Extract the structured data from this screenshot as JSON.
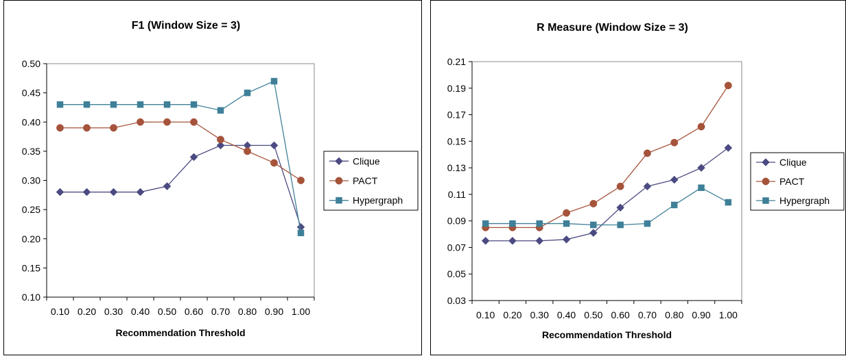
{
  "chart_data": [
    {
      "type": "line",
      "title": "F1 (Window Size = 3)",
      "xlabel": "Recommendation Threshold",
      "ylabel": "",
      "categories": [
        "0.10",
        "0.20",
        "0.30",
        "0.40",
        "0.50",
        "0.60",
        "0.70",
        "0.80",
        "0.90",
        "1.00"
      ],
      "yticks": [
        "0.10",
        "0.15",
        "0.20",
        "0.25",
        "0.30",
        "0.35",
        "0.40",
        "0.45",
        "0.50"
      ],
      "ylim": [
        0.1,
        0.5
      ],
      "grid": false,
      "legend_position": "right",
      "series": [
        {
          "name": "Clique",
          "color": "#4b4a82",
          "marker": "diamond",
          "values": [
            0.28,
            0.28,
            0.28,
            0.28,
            0.29,
            0.34,
            0.36,
            0.36,
            0.36,
            0.22
          ]
        },
        {
          "name": "PACT",
          "color": "#a5533a",
          "marker": "circle",
          "values": [
            0.39,
            0.39,
            0.39,
            0.4,
            0.4,
            0.4,
            0.37,
            0.35,
            0.33,
            0.3
          ]
        },
        {
          "name": "Hypergraph",
          "color": "#3f8098",
          "marker": "square",
          "values": [
            0.43,
            0.43,
            0.43,
            0.43,
            0.43,
            0.43,
            0.42,
            0.45,
            0.47,
            0.21
          ]
        }
      ]
    },
    {
      "type": "line",
      "title": "R Measure (Window Size = 3)",
      "xlabel": "Recommendation Threshold",
      "ylabel": "",
      "categories": [
        "0.10",
        "0.20",
        "0.30",
        "0.40",
        "0.50",
        "0.60",
        "0.70",
        "0.80",
        "0.90",
        "1.00"
      ],
      "yticks": [
        "0.03",
        "0.05",
        "0.07",
        "0.09",
        "0.11",
        "0.13",
        "0.15",
        "0.17",
        "0.19",
        "0.21"
      ],
      "ylim": [
        0.03,
        0.21
      ],
      "grid": false,
      "legend_position": "right",
      "series": [
        {
          "name": "Clique",
          "color": "#4b4a82",
          "marker": "diamond",
          "values": [
            0.075,
            0.075,
            0.075,
            0.076,
            0.081,
            0.1,
            0.116,
            0.121,
            0.13,
            0.145
          ]
        },
        {
          "name": "PACT",
          "color": "#a5533a",
          "marker": "circle",
          "values": [
            0.085,
            0.085,
            0.085,
            0.096,
            0.103,
            0.116,
            0.141,
            0.149,
            0.161,
            0.192
          ]
        },
        {
          "name": "Hypergraph",
          "color": "#3f8098",
          "marker": "square",
          "values": [
            0.088,
            0.088,
            0.088,
            0.088,
            0.087,
            0.087,
            0.088,
            0.102,
            0.115,
            0.104
          ]
        }
      ]
    }
  ]
}
